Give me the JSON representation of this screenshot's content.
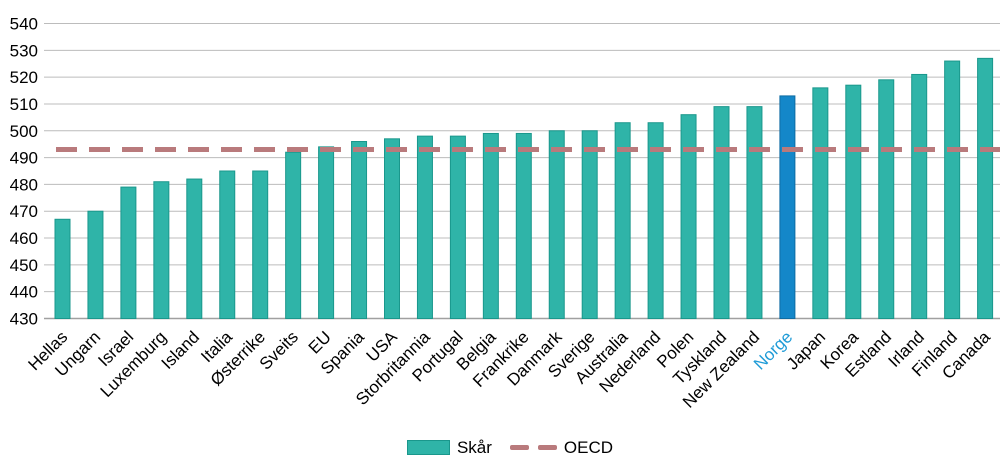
{
  "chart_data": {
    "type": "bar",
    "title": "",
    "xlabel": "",
    "ylabel": "",
    "categories": [
      "Hellas",
      "Ungarn",
      "Israel",
      "Luxemburg",
      "Island",
      "Italia",
      "Østerrike",
      "Sveits",
      "EU",
      "Spania",
      "USA",
      "Storbritannia",
      "Portugal",
      "Belgia",
      "Frankrike",
      "Danmark",
      "Sverige",
      "Australia",
      "Nederland",
      "Polen",
      "Tyskland",
      "New Zealand",
      "Norge",
      "Japan",
      "Korea",
      "Estland",
      "Irland",
      "Finland",
      "Canada"
    ],
    "values": [
      467,
      470,
      479,
      481,
      482,
      485,
      485,
      492,
      494,
      496,
      497,
      498,
      498,
      499,
      499,
      500,
      500,
      503,
      503,
      506,
      509,
      509,
      513,
      516,
      517,
      519,
      521,
      526,
      527
    ],
    "highlight_category": "Norge",
    "reference_line": {
      "label": "OECD",
      "value": 493
    },
    "ylim": [
      430,
      540
    ],
    "ytick_step": 10,
    "yticks": [
      "430",
      "440",
      "450",
      "460",
      "470",
      "480",
      "490",
      "500",
      "510",
      "520",
      "530",
      "540"
    ],
    "grid": true,
    "legend_position": "bottom-center",
    "legend": [
      {
        "label": "Skår",
        "marker": "bar"
      },
      {
        "label": "OECD",
        "marker": "dashed-line"
      }
    ],
    "colors": {
      "bar_fill": "#2fb4a8",
      "bar_stroke": "#1a978c",
      "highlight_fill": "#1487c9",
      "highlight_stroke": "#0e6ca3",
      "highlight_label": "#1e9bd7",
      "reference_line": "#b97a7c",
      "gridline": "#bcbcbc",
      "axis_line": "#a0a0a0",
      "text": "#000000"
    }
  }
}
